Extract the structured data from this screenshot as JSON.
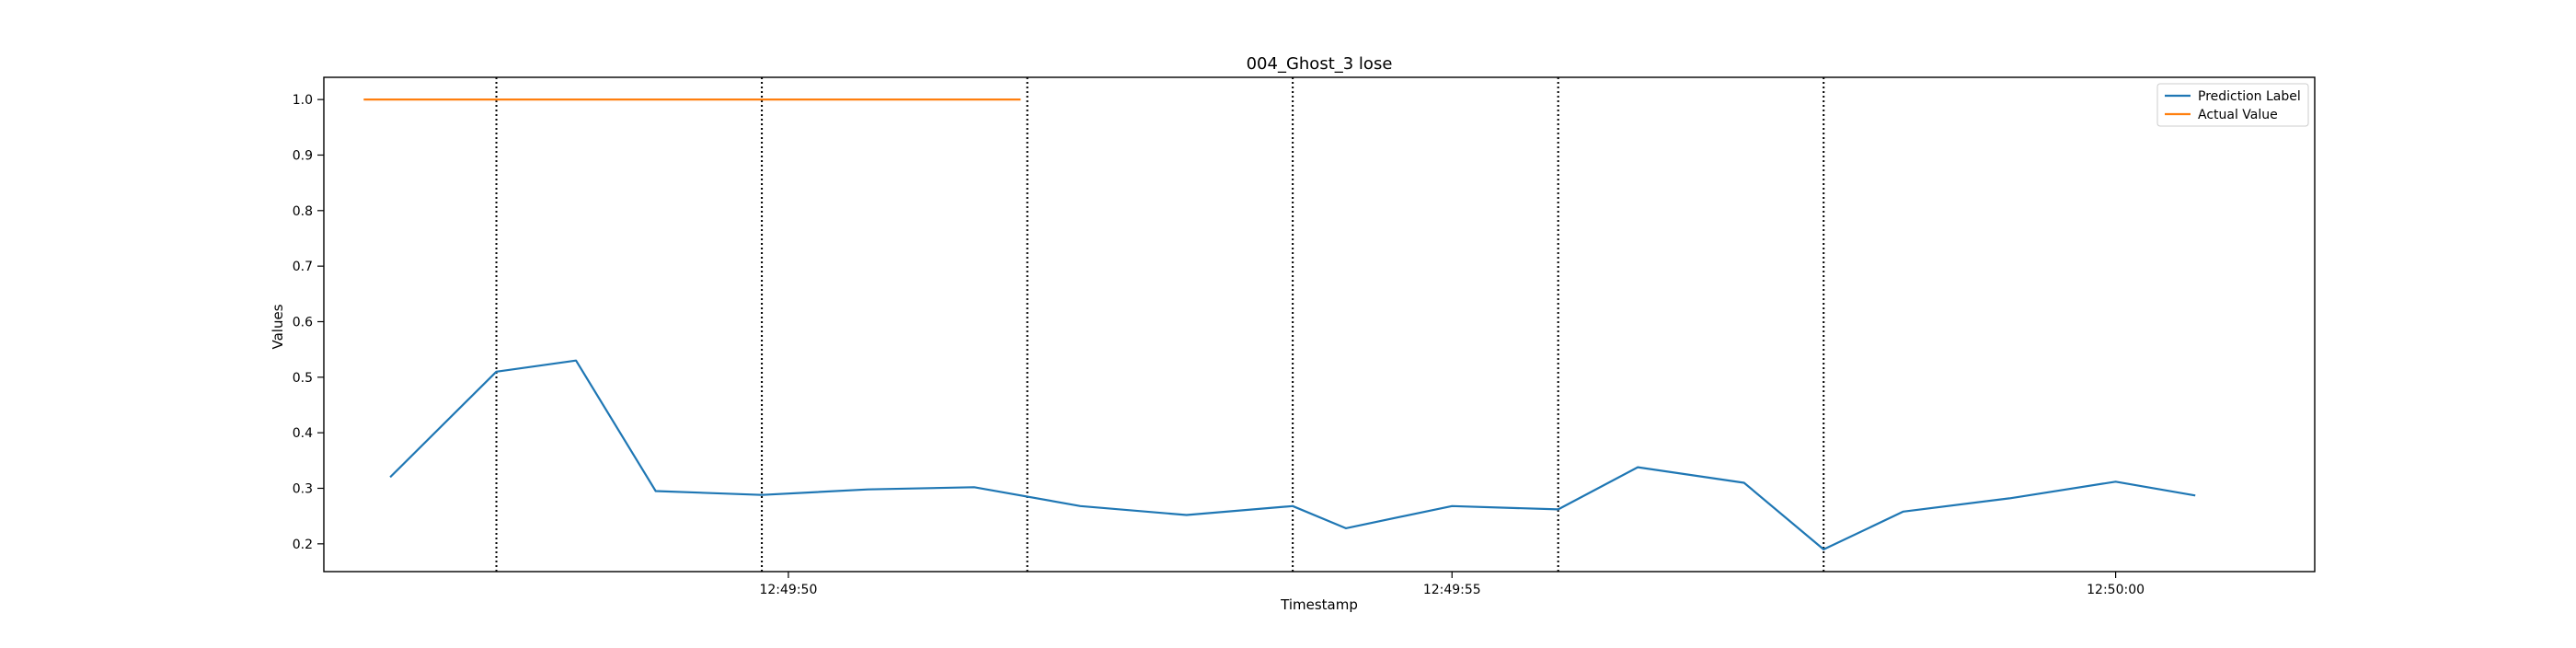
{
  "chart_data": {
    "type": "line",
    "title": "004_Ghost_3 lose",
    "xlabel": "Timestamp",
    "ylabel": "Values",
    "xlim": [
      "12:49:46.5",
      "12:50:01.5"
    ],
    "ylim": [
      0.15,
      1.04
    ],
    "x_ticks": [
      "12:49:50",
      "12:49:55",
      "12:50:00"
    ],
    "y_ticks": [
      "0.2",
      "0.3",
      "0.4",
      "0.5",
      "0.6",
      "0.7",
      "0.8",
      "0.9",
      "1.0"
    ],
    "legend_position": "top-right",
    "grid": false,
    "vertical_lines": [
      "12:49:47.8",
      "12:49:49.8",
      "12:49:51.8",
      "12:49:53.8",
      "12:49:55.8",
      "12:49:57.8"
    ],
    "series": [
      {
        "name": "Prediction Label",
        "color": "#1f77b4",
        "x": [
          "12:49:47.0",
          "12:49:47.8",
          "12:49:48.4",
          "12:49:49.0",
          "12:49:49.8",
          "12:49:50.6",
          "12:49:51.4",
          "12:49:52.2",
          "12:49:53.0",
          "12:49:53.8",
          "12:49:54.2",
          "12:49:55.0",
          "12:49:55.8",
          "12:49:56.4",
          "12:49:57.2",
          "12:49:57.8",
          "12:49:58.4",
          "12:49:59.2",
          "12:50:00.0",
          "12:50:00.6"
        ],
        "values": [
          0.32,
          0.51,
          0.53,
          0.295,
          0.288,
          0.298,
          0.302,
          0.268,
          0.252,
          0.268,
          0.228,
          0.268,
          0.262,
          0.338,
          0.31,
          0.19,
          0.258,
          0.282,
          0.312,
          0.287
        ]
      },
      {
        "name": "Actual Value",
        "color": "#ff7f0e",
        "x": [
          "12:49:46.8",
          "12:49:51.75"
        ],
        "values": [
          1.0,
          1.0
        ]
      }
    ]
  }
}
